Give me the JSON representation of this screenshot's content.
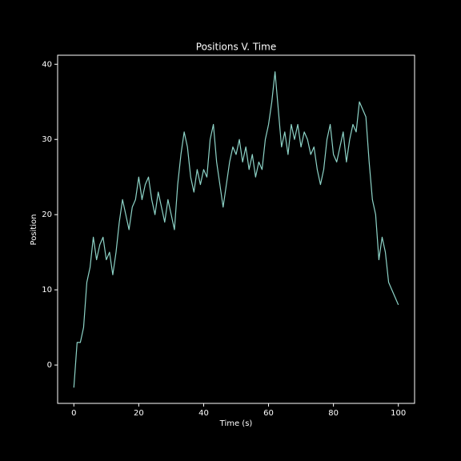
{
  "chart_data": {
    "type": "line",
    "title": "Positions V. Time",
    "xlabel": "Time (s)",
    "ylabel": "Position",
    "x": [
      0,
      1,
      2,
      3,
      4,
      5,
      6,
      7,
      8,
      9,
      10,
      11,
      12,
      13,
      14,
      15,
      16,
      17,
      18,
      19,
      20,
      21,
      22,
      23,
      24,
      25,
      26,
      27,
      28,
      29,
      30,
      31,
      32,
      33,
      34,
      35,
      36,
      37,
      38,
      39,
      40,
      41,
      42,
      43,
      44,
      45,
      46,
      47,
      48,
      49,
      50,
      51,
      52,
      53,
      54,
      55,
      56,
      57,
      58,
      59,
      60,
      61,
      62,
      63,
      64,
      65,
      66,
      67,
      68,
      69,
      70,
      71,
      72,
      73,
      74,
      75,
      76,
      77,
      78,
      79,
      80,
      81,
      82,
      83,
      84,
      85,
      86,
      87,
      88,
      89,
      90,
      91,
      92,
      93,
      94,
      95,
      96,
      97,
      98,
      99,
      100
    ],
    "values": [
      -3,
      3,
      3,
      5,
      11,
      13,
      17,
      14,
      16,
      17,
      14,
      15,
      12,
      15,
      19,
      22,
      20,
      18,
      21,
      22,
      25,
      22,
      24,
      25,
      22,
      20,
      23,
      21,
      19,
      22,
      20,
      18,
      24,
      28,
      31,
      29,
      25,
      23,
      26,
      24,
      26,
      25,
      30,
      32,
      27,
      24,
      21,
      24,
      27,
      29,
      28,
      30,
      27,
      29,
      26,
      28,
      25,
      27,
      26,
      30,
      32,
      35,
      39,
      34,
      29,
      31,
      28,
      32,
      30,
      32,
      29,
      31,
      30,
      28,
      29,
      26,
      24,
      26,
      30,
      32,
      28,
      27,
      29,
      31,
      27,
      30,
      32,
      31,
      35,
      34,
      33,
      27,
      22,
      20,
      14,
      17,
      15,
      11,
      10,
      9,
      8
    ],
    "color": "#8dd3c7",
    "xlim": [
      -5,
      105
    ],
    "xticks": [
      0,
      20,
      40,
      60,
      80,
      100
    ],
    "ylim": [
      -5.1,
      41.2
    ],
    "yticks": [
      0,
      10,
      20,
      30,
      40
    ]
  }
}
